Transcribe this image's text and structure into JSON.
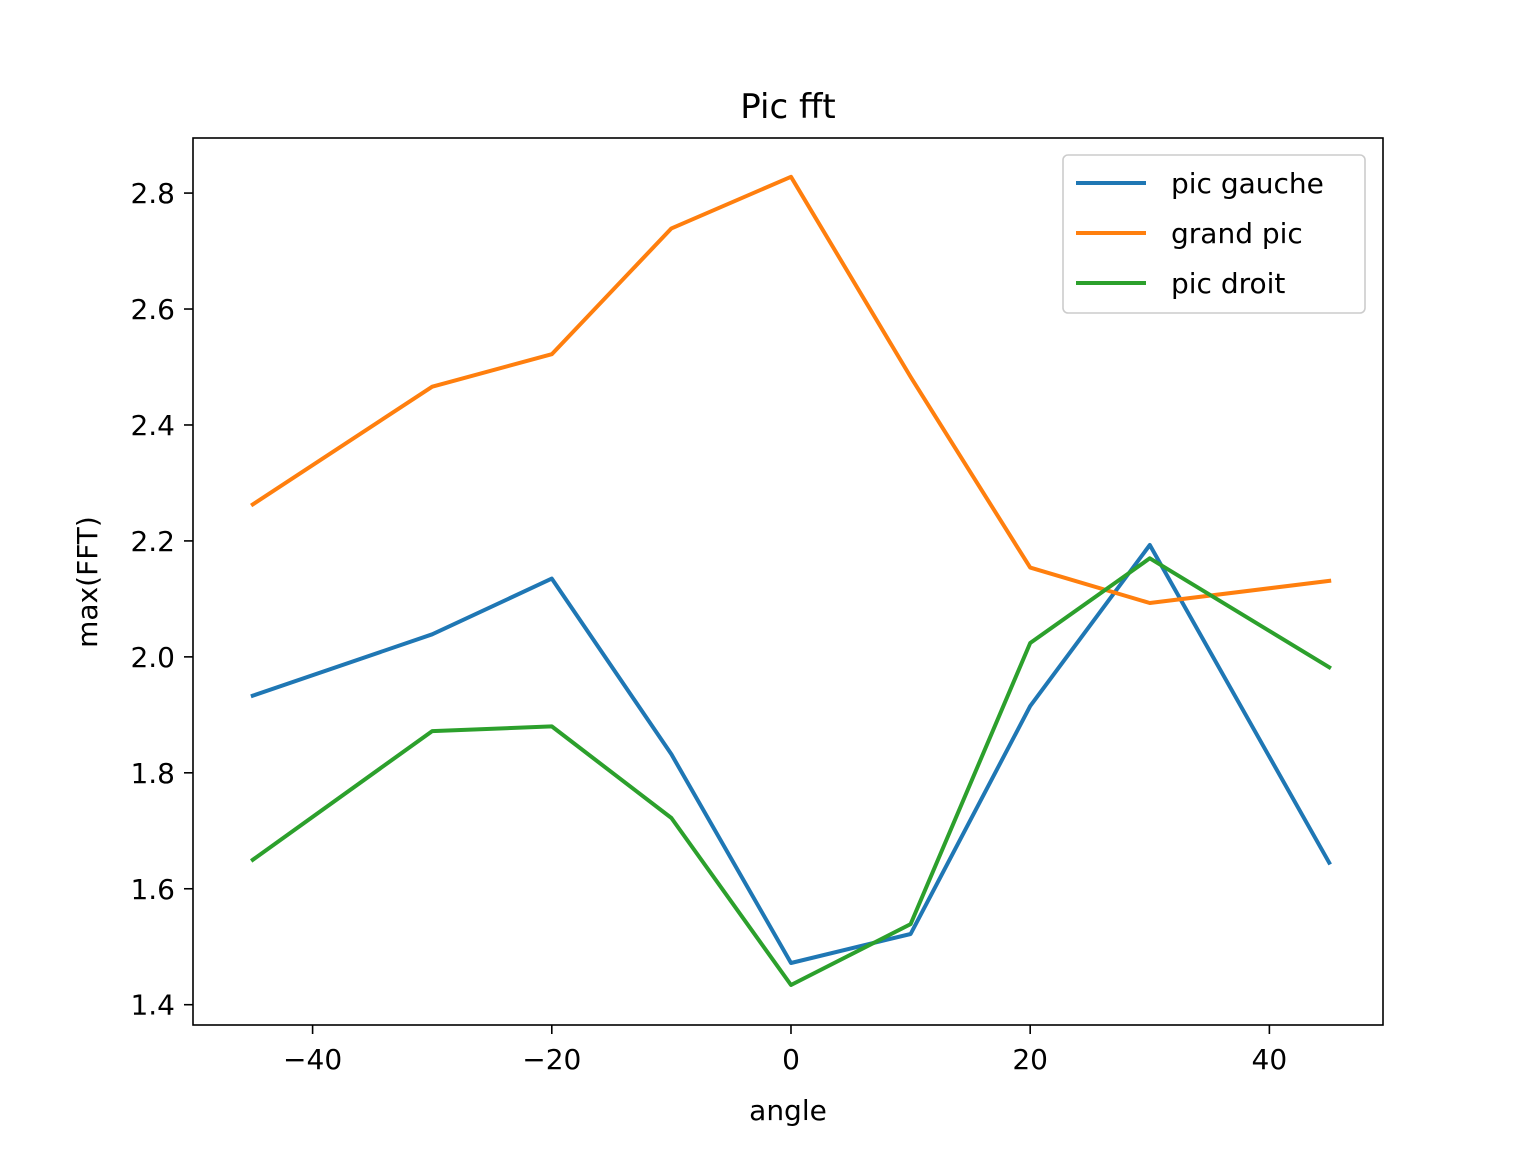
{
  "chart_data": {
    "type": "line",
    "title": "Pic fft",
    "xlabel": "angle",
    "ylabel": "max(FFT)",
    "x": [
      -45,
      -30,
      -20,
      -10,
      0,
      10,
      20,
      30,
      45
    ],
    "xlim": [
      -50,
      49.5
    ],
    "ylim": [
      1.365,
      2.895
    ],
    "xticks": [
      -40,
      -20,
      0,
      20,
      40
    ],
    "xtick_labels": [
      "−40",
      "−20",
      "0",
      "20",
      "40"
    ],
    "yticks": [
      1.4,
      1.6,
      1.8,
      2.0,
      2.2,
      2.4,
      2.6,
      2.8
    ],
    "ytick_labels": [
      "1.4",
      "1.6",
      "1.8",
      "2.0",
      "2.2",
      "2.4",
      "2.6",
      "2.8"
    ],
    "grid": false,
    "legend_position": "top-right",
    "series": [
      {
        "name": "pic gauche",
        "color": "#1f77b4",
        "values": [
          1.933,
          2.039,
          2.135,
          1.832,
          1.472,
          1.522,
          1.915,
          2.193,
          1.645
        ]
      },
      {
        "name": "grand pic",
        "color": "#ff7f0e",
        "values": [
          2.263,
          2.466,
          2.522,
          2.739,
          2.828,
          2.483,
          2.154,
          2.093,
          2.131
        ]
      },
      {
        "name": "pic droit",
        "color": "#2ca02c",
        "values": [
          1.65,
          1.872,
          1.88,
          1.722,
          1.434,
          1.539,
          2.024,
          2.17,
          1.982
        ]
      }
    ]
  }
}
